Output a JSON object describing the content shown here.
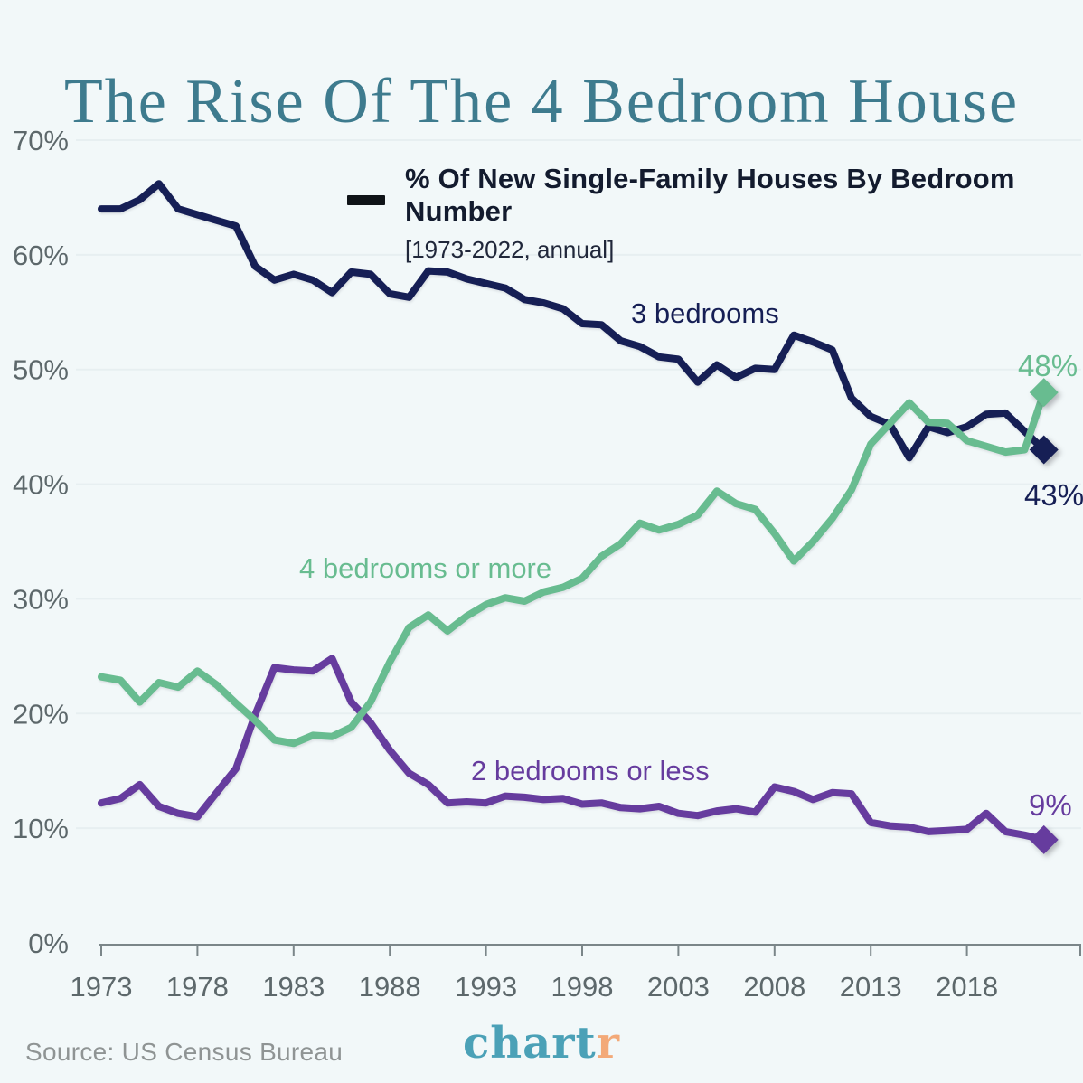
{
  "title": "The Rise Of The 4 Bedroom House",
  "legend": {
    "title": "% Of New Single-Family Houses By Bedroom Number",
    "subtitle": "[1973-2022, annual]"
  },
  "footer": {
    "source": "Source: US Census Bureau",
    "logo_part1": "chart",
    "logo_part2": "r"
  },
  "colors": {
    "background": "#f2f8f9",
    "title_teal": "#3e7b8e",
    "navy": "#161f55",
    "green": "#68bc90",
    "purple": "#663c9e",
    "axis_gray": "#5d686b",
    "gridline": "#e7eff1",
    "legend_dark": "#131b2e",
    "source_gray": "#8f9494",
    "logo_teal": "#4ba1b7",
    "logo_orange": "#f3a978"
  },
  "chart_data": {
    "type": "line",
    "title": "% Of New Single-Family Houses By Bedroom Number",
    "subtitle": "[1973-2022, annual]",
    "xlabel": "",
    "ylabel": "",
    "ylim": [
      0,
      70
    ],
    "grid": "horizontal-faint",
    "x": [
      1973,
      1974,
      1975,
      1976,
      1977,
      1978,
      1979,
      1980,
      1981,
      1982,
      1983,
      1984,
      1985,
      1986,
      1987,
      1988,
      1989,
      1990,
      1991,
      1992,
      1993,
      1994,
      1995,
      1996,
      1997,
      1998,
      1999,
      2000,
      2001,
      2002,
      2003,
      2004,
      2005,
      2006,
      2007,
      2008,
      2009,
      2010,
      2011,
      2012,
      2013,
      2014,
      2015,
      2016,
      2017,
      2018,
      2019,
      2020,
      2021,
      2022
    ],
    "xticks": [
      1973,
      1978,
      1983,
      1988,
      1993,
      1998,
      2003,
      2008,
      2013,
      2018
    ],
    "yticks": [
      "0%",
      "10%",
      "20%",
      "30%",
      "40%",
      "50%",
      "60%",
      "70%"
    ],
    "series": [
      {
        "name": "3 bedrooms",
        "color": "#161f55",
        "end_label": "43%",
        "values": [
          64.0,
          64.0,
          64.8,
          66.2,
          64.0,
          63.5,
          63.0,
          62.5,
          59.0,
          57.8,
          58.3,
          57.8,
          56.7,
          58.5,
          58.3,
          56.6,
          56.3,
          58.6,
          58.5,
          57.9,
          57.5,
          57.1,
          56.1,
          55.8,
          55.3,
          54.0,
          53.9,
          52.5,
          52.0,
          51.1,
          50.9,
          48.9,
          50.4,
          49.3,
          50.1,
          50.0,
          53.0,
          52.4,
          51.7,
          47.5,
          45.9,
          45.2,
          42.3,
          45.0,
          44.5,
          45.0,
          46.1,
          46.2,
          44.6,
          43.0
        ]
      },
      {
        "name": "4 bedrooms or more",
        "color": "#68bc90",
        "end_label": "48%",
        "values": [
          23.2,
          22.9,
          21.0,
          22.7,
          22.3,
          23.7,
          22.5,
          20.9,
          19.4,
          17.7,
          17.4,
          18.1,
          18.0,
          18.8,
          21.0,
          24.5,
          27.5,
          28.6,
          27.2,
          28.5,
          29.5,
          30.1,
          29.8,
          30.6,
          31.0,
          31.8,
          33.7,
          34.8,
          36.6,
          36.0,
          36.5,
          37.3,
          39.4,
          38.3,
          37.8,
          35.7,
          33.3,
          35.0,
          37.0,
          39.5,
          43.5,
          45.3,
          47.1,
          45.4,
          45.3,
          43.8,
          43.3,
          42.8,
          43.0,
          48.0
        ]
      },
      {
        "name": "2 bedrooms or less",
        "color": "#663c9e",
        "end_label": "9%",
        "values": [
          12.2,
          12.6,
          13.8,
          11.9,
          11.3,
          11.0,
          13.1,
          15.2,
          19.9,
          24.0,
          23.8,
          23.7,
          24.8,
          21.0,
          19.2,
          16.8,
          14.8,
          13.8,
          12.2,
          12.3,
          12.2,
          12.8,
          12.7,
          12.5,
          12.6,
          12.1,
          12.2,
          11.8,
          11.7,
          11.9,
          11.3,
          11.1,
          11.5,
          11.7,
          11.4,
          13.6,
          13.2,
          12.5,
          13.1,
          13.0,
          10.5,
          10.2,
          10.1,
          9.7,
          9.8,
          9.9,
          11.3,
          9.7,
          9.4,
          9.0
        ]
      }
    ],
    "legend_position": "top-center",
    "end_markers": "diamond"
  }
}
